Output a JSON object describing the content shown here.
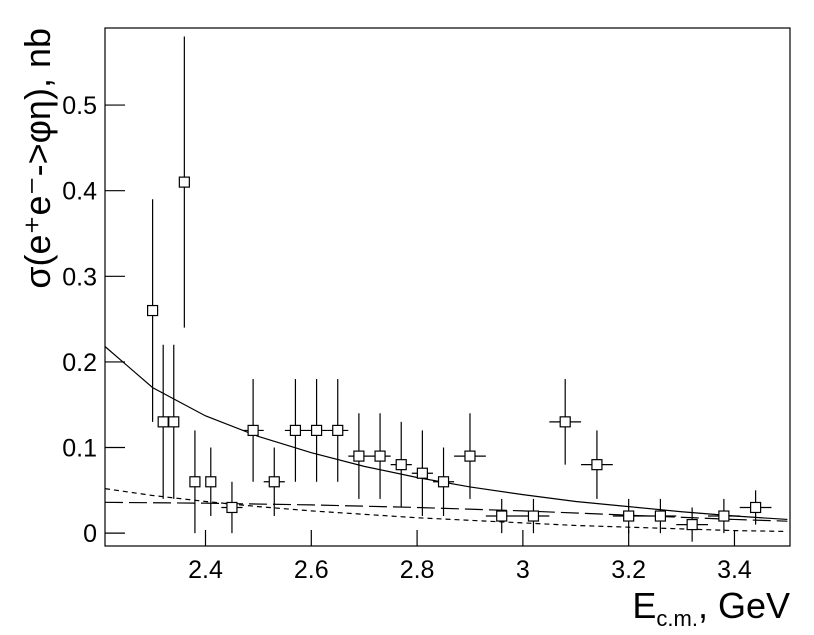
{
  "chart_data": {
    "type": "errorbar",
    "x_label": {
      "main": "E",
      "sub": "c.m.",
      "rest": ", GeV"
    },
    "y_label": "σ(e⁺e⁻->φη), nb",
    "xlim": [
      2.21,
      3.505
    ],
    "ylim": [
      -0.015,
      0.59
    ],
    "xticks": [
      2.4,
      2.6,
      2.8,
      3,
      3.2,
      3.4
    ],
    "yticks": [
      0,
      0.1,
      0.2,
      0.3,
      0.4,
      0.5
    ],
    "series": [
      {
        "marker": "open-square",
        "color": "#000000",
        "x": [
          2.3,
          2.32,
          2.34,
          2.36,
          2.38,
          2.41,
          2.45,
          2.49,
          2.53,
          2.57,
          2.61,
          2.65,
          2.69,
          2.73,
          2.77,
          2.81,
          2.85,
          2.9,
          2.96,
          3.02,
          3.08,
          3.14,
          3.2,
          3.26,
          3.32,
          3.38,
          3.44
        ],
        "xerr": [
          0,
          0,
          0,
          0,
          0,
          0,
          0.02,
          0.02,
          0.02,
          0.02,
          0.02,
          0.02,
          0.02,
          0.02,
          0.02,
          0.02,
          0.02,
          0.03,
          0.03,
          0.03,
          0.03,
          0.03,
          0.03,
          0.03,
          0.03,
          0.03,
          0.03
        ],
        "values": [
          0.26,
          0.13,
          0.13,
          0.41,
          0.06,
          0.06,
          0.03,
          0.12,
          0.06,
          0.12,
          0.12,
          0.12,
          0.09,
          0.09,
          0.08,
          0.07,
          0.06,
          0.09,
          0.02,
          0.02,
          0.13,
          0.08,
          0.02,
          0.02,
          0.01,
          0.02,
          0.03
        ],
        "yerr": [
          0.13,
          0.09,
          0.09,
          0.17,
          0.06,
          0.04,
          0.03,
          0.06,
          0.04,
          0.06,
          0.06,
          0.06,
          0.05,
          0.05,
          0.05,
          0.05,
          0.04,
          0.05,
          0.02,
          0.02,
          0.05,
          0.04,
          0.02,
          0.02,
          0.02,
          0.02,
          0.02
        ]
      }
    ],
    "curves": [
      {
        "style": "solid",
        "x": [
          2.21,
          2.3,
          2.4,
          2.5,
          2.6,
          2.7,
          2.8,
          2.9,
          3.0,
          3.1,
          3.2,
          3.3,
          3.4,
          3.5
        ],
        "values": [
          0.218,
          0.17,
          0.137,
          0.113,
          0.094,
          0.078,
          0.065,
          0.054,
          0.045,
          0.037,
          0.031,
          0.025,
          0.02,
          0.016
        ]
      },
      {
        "style": "dashed",
        "x": [
          2.21,
          2.4,
          2.6,
          2.8,
          3.0,
          3.2,
          3.4,
          3.5
        ],
        "values": [
          0.036,
          0.035,
          0.033,
          0.03,
          0.026,
          0.021,
          0.016,
          0.014
        ]
      },
      {
        "style": "dotted",
        "x": [
          2.21,
          2.3,
          2.4,
          2.5,
          2.6,
          2.7,
          2.8,
          2.9,
          3.0,
          3.1,
          3.2,
          3.3,
          3.4,
          3.5
        ],
        "values": [
          0.052,
          0.044,
          0.037,
          0.031,
          0.026,
          0.022,
          0.018,
          0.015,
          0.012,
          0.009,
          0.007,
          0.005,
          0.003,
          0.002
        ]
      }
    ]
  }
}
